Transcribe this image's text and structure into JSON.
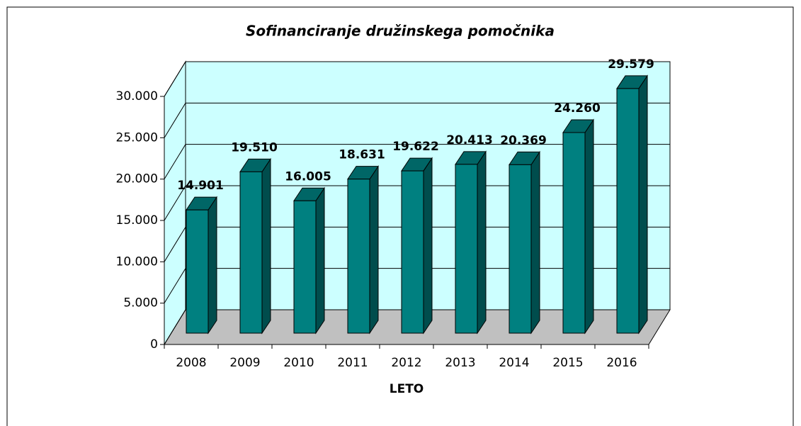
{
  "chart_data": {
    "type": "bar",
    "title": "Sofinanciranje družinskega pomočnika",
    "x_label": "LETO",
    "categories": [
      "2008",
      "2009",
      "2010",
      "2011",
      "2012",
      "2013",
      "2014",
      "2015",
      "2016"
    ],
    "values": [
      14901,
      19510,
      16005,
      18631,
      19622,
      20413,
      20369,
      24260,
      29579
    ],
    "value_labels": [
      "14.901",
      "19.510",
      "16.005",
      "18.631",
      "19.622",
      "20.413",
      "20.369",
      "24.260",
      "29.579"
    ],
    "color": "#008080",
    "ylim": [
      0,
      30000
    ],
    "yticks": [
      0,
      {
        "value": 5000,
        "label": "5.000"
      },
      {
        "value": 10000,
        "label": "10.000"
      },
      {
        "value": 15000,
        "label": "15.000"
      },
      {
        "value": 20000,
        "label": "20.000"
      },
      {
        "value": 25000,
        "label": "25.000"
      },
      {
        "value": 30000,
        "label": "30.000"
      }
    ],
    "grid": true
  }
}
